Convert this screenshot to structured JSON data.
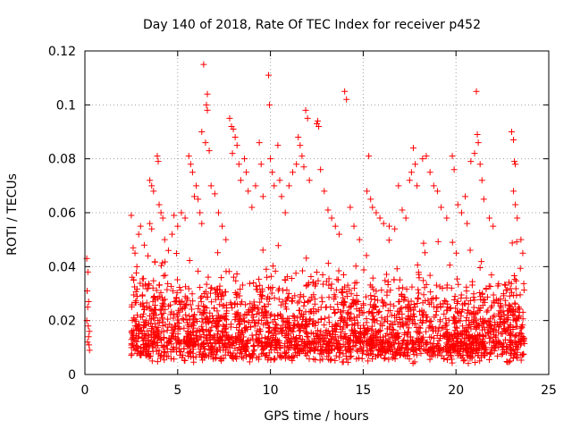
{
  "chart_data": {
    "type": "scatter",
    "title": "Day 140 of 2018, Rate Of TEC Index for receiver p452",
    "xlabel": "GPS time / hours",
    "ylabel": "ROTI / TECUs",
    "xlim": [
      0,
      25
    ],
    "ylim": [
      0,
      0.12
    ],
    "xticks": [
      0,
      5,
      10,
      15,
      20,
      25
    ],
    "xtick_labels": [
      "0",
      "5",
      "10",
      "15",
      "20",
      "25"
    ],
    "yticks": [
      0,
      0.02,
      0.04,
      0.06,
      0.08,
      0.1,
      0.12
    ],
    "ytick_labels": [
      "0",
      "0.02",
      "0.04",
      "0.06",
      "0.08",
      "0.1",
      "0.12"
    ],
    "grid": true,
    "marker": "+",
    "color": "#ff0000",
    "series": [
      {
        "name": "ROTI",
        "points": [
          [
            0.1,
            0.043
          ],
          [
            0.12,
            0.031
          ],
          [
            0.15,
            0.025
          ],
          [
            0.18,
            0.018
          ],
          [
            0.2,
            0.014
          ],
          [
            0.22,
            0.011
          ],
          [
            0.25,
            0.009
          ],
          [
            0.1,
            0.02
          ],
          [
            0.16,
            0.038
          ],
          [
            0.2,
            0.027
          ],
          [
            0.24,
            0.016
          ],
          [
            0.14,
            0.012
          ],
          [
            2.5,
            0.059
          ],
          [
            2.6,
            0.047
          ],
          [
            2.7,
            0.045
          ],
          [
            2.8,
            0.04
          ],
          [
            2.9,
            0.052
          ],
          [
            3.0,
            0.055
          ],
          [
            3.2,
            0.048
          ],
          [
            3.4,
            0.044
          ],
          [
            3.5,
            0.056
          ],
          [
            3.6,
            0.054
          ],
          [
            3.5,
            0.072
          ],
          [
            3.6,
            0.07
          ],
          [
            3.7,
            0.068
          ],
          [
            3.9,
            0.081
          ],
          [
            3.95,
            0.079
          ],
          [
            4.0,
            0.063
          ],
          [
            4.1,
            0.06
          ],
          [
            4.2,
            0.058
          ],
          [
            4.3,
            0.05
          ],
          [
            4.5,
            0.046
          ],
          [
            4.7,
            0.052
          ],
          [
            4.8,
            0.059
          ],
          [
            5.0,
            0.055
          ],
          [
            5.2,
            0.06
          ],
          [
            5.4,
            0.058
          ],
          [
            5.6,
            0.081
          ],
          [
            5.7,
            0.078
          ],
          [
            5.8,
            0.075
          ],
          [
            5.9,
            0.066
          ],
          [
            6.0,
            0.07
          ],
          [
            6.1,
            0.065
          ],
          [
            6.2,
            0.06
          ],
          [
            6.3,
            0.056
          ],
          [
            6.4,
            0.115
          ],
          [
            6.3,
            0.09
          ],
          [
            6.5,
            0.086
          ],
          [
            6.6,
            0.104
          ],
          [
            6.55,
            0.1
          ],
          [
            6.6,
            0.098
          ],
          [
            6.7,
            0.083
          ],
          [
            6.8,
            0.07
          ],
          [
            7.0,
            0.067
          ],
          [
            7.2,
            0.06
          ],
          [
            7.4,
            0.055
          ],
          [
            7.6,
            0.05
          ],
          [
            7.8,
            0.095
          ],
          [
            7.9,
            0.092
          ],
          [
            8.0,
            0.091
          ],
          [
            8.1,
            0.088
          ],
          [
            8.2,
            0.085
          ],
          [
            7.95,
            0.082
          ],
          [
            8.3,
            0.078
          ],
          [
            8.4,
            0.072
          ],
          [
            8.6,
            0.08
          ],
          [
            8.7,
            0.075
          ],
          [
            8.8,
            0.068
          ],
          [
            9.0,
            0.062
          ],
          [
            9.2,
            0.07
          ],
          [
            9.4,
            0.086
          ],
          [
            9.5,
            0.078
          ],
          [
            9.6,
            0.066
          ],
          [
            9.9,
            0.111
          ],
          [
            9.95,
            0.1
          ],
          [
            10.0,
            0.08
          ],
          [
            10.1,
            0.075
          ],
          [
            10.2,
            0.07
          ],
          [
            10.4,
            0.085
          ],
          [
            10.5,
            0.072
          ],
          [
            10.6,
            0.066
          ],
          [
            10.8,
            0.06
          ],
          [
            11.0,
            0.07
          ],
          [
            11.2,
            0.075
          ],
          [
            11.4,
            0.078
          ],
          [
            11.5,
            0.088
          ],
          [
            11.6,
            0.085
          ],
          [
            11.7,
            0.081
          ],
          [
            11.8,
            0.077
          ],
          [
            11.9,
            0.098
          ],
          [
            12.0,
            0.095
          ],
          [
            12.1,
            0.072
          ],
          [
            12.5,
            0.093
          ],
          [
            12.6,
            0.092
          ],
          [
            12.55,
            0.094
          ],
          [
            12.7,
            0.076
          ],
          [
            12.9,
            0.068
          ],
          [
            13.1,
            0.061
          ],
          [
            13.3,
            0.058
          ],
          [
            13.5,
            0.055
          ],
          [
            13.7,
            0.052
          ],
          [
            14.0,
            0.105
          ],
          [
            14.1,
            0.102
          ],
          [
            14.3,
            0.062
          ],
          [
            14.5,
            0.055
          ],
          [
            14.8,
            0.05
          ],
          [
            15.3,
            0.081
          ],
          [
            15.2,
            0.068
          ],
          [
            15.4,
            0.065
          ],
          [
            15.5,
            0.062
          ],
          [
            15.7,
            0.06
          ],
          [
            15.9,
            0.058
          ],
          [
            16.1,
            0.056
          ],
          [
            16.4,
            0.055
          ],
          [
            16.7,
            0.054
          ],
          [
            16.9,
            0.07
          ],
          [
            17.1,
            0.061
          ],
          [
            17.3,
            0.058
          ],
          [
            17.5,
            0.072
          ],
          [
            17.6,
            0.075
          ],
          [
            17.7,
            0.084
          ],
          [
            17.8,
            0.078
          ],
          [
            17.9,
            0.07
          ],
          [
            18.2,
            0.08
          ],
          [
            18.4,
            0.081
          ],
          [
            18.6,
            0.075
          ],
          [
            18.8,
            0.07
          ],
          [
            19.0,
            0.068
          ],
          [
            19.2,
            0.062
          ],
          [
            19.5,
            0.058
          ],
          [
            19.8,
            0.081
          ],
          [
            19.9,
            0.076
          ],
          [
            20.1,
            0.063
          ],
          [
            20.3,
            0.06
          ],
          [
            20.5,
            0.066
          ],
          [
            20.6,
            0.056
          ],
          [
            20.8,
            0.079
          ],
          [
            21.0,
            0.082
          ],
          [
            21.1,
            0.105
          ],
          [
            21.15,
            0.089
          ],
          [
            21.2,
            0.086
          ],
          [
            21.3,
            0.078
          ],
          [
            21.4,
            0.072
          ],
          [
            21.5,
            0.065
          ],
          [
            21.8,
            0.058
          ],
          [
            22.0,
            0.055
          ],
          [
            23.0,
            0.09
          ],
          [
            23.1,
            0.087
          ],
          [
            23.15,
            0.079
          ],
          [
            23.2,
            0.078
          ],
          [
            23.1,
            0.068
          ],
          [
            23.2,
            0.063
          ],
          [
            23.3,
            0.058
          ],
          [
            23.5,
            0.05
          ],
          [
            23.6,
            0.045
          ]
        ]
      }
    ]
  }
}
